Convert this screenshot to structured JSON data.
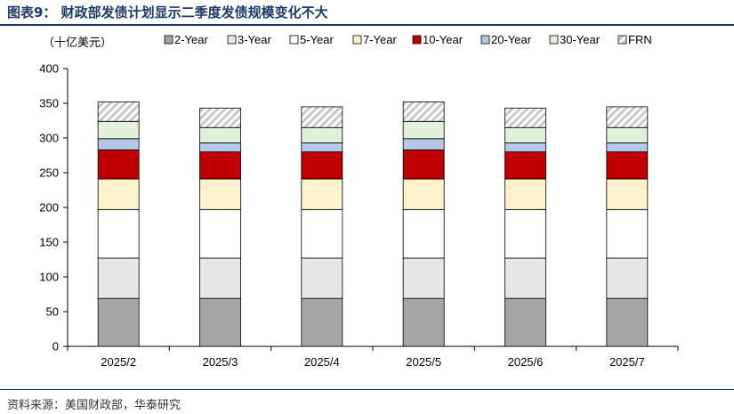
{
  "figure": {
    "title": "图表9：  财政部发债计划显示二季度发债规模变化不大",
    "source": "资料来源：美国财政部，华泰研究"
  },
  "chart_data": {
    "type": "bar",
    "stacked": true,
    "unit_label": "（十亿美元）",
    "categories": [
      "2025/2",
      "2025/3",
      "2025/4",
      "2025/5",
      "2025/6",
      "2025/7"
    ],
    "yticks": [
      "0",
      "50",
      "100",
      "150",
      "200",
      "250",
      "300",
      "350",
      "400"
    ],
    "ylim": [
      0,
      400
    ],
    "grid": false,
    "legend_position": "top",
    "series": [
      {
        "name": "2-Year",
        "color": "#a6a6a6",
        "pattern": "solid",
        "values": [
          69,
          69,
          69,
          69,
          69,
          69
        ]
      },
      {
        "name": "3-Year",
        "color": "#e6e6e6",
        "pattern": "solid",
        "values": [
          58,
          58,
          58,
          58,
          58,
          58
        ]
      },
      {
        "name": "5-Year",
        "color": "#ffffff",
        "pattern": "solid",
        "values": [
          70,
          70,
          70,
          70,
          70,
          70
        ]
      },
      {
        "name": "7-Year",
        "color": "#fff2cc",
        "pattern": "solid",
        "values": [
          44,
          44,
          44,
          44,
          44,
          44
        ]
      },
      {
        "name": "10-Year",
        "color": "#c00000",
        "pattern": "solid",
        "values": [
          42,
          39,
          39,
          42,
          39,
          39
        ]
      },
      {
        "name": "20-Year",
        "color": "#b4c7e7",
        "pattern": "solid",
        "values": [
          16,
          13,
          13,
          16,
          13,
          13
        ]
      },
      {
        "name": "30-Year",
        "color": "#e2f0d9",
        "pattern": "solid",
        "values": [
          25,
          22,
          22,
          25,
          22,
          22
        ]
      },
      {
        "name": "FRN",
        "color": "#d9d9d9",
        "pattern": "hatch",
        "values": [
          28,
          28,
          30,
          28,
          28,
          30
        ]
      }
    ]
  }
}
